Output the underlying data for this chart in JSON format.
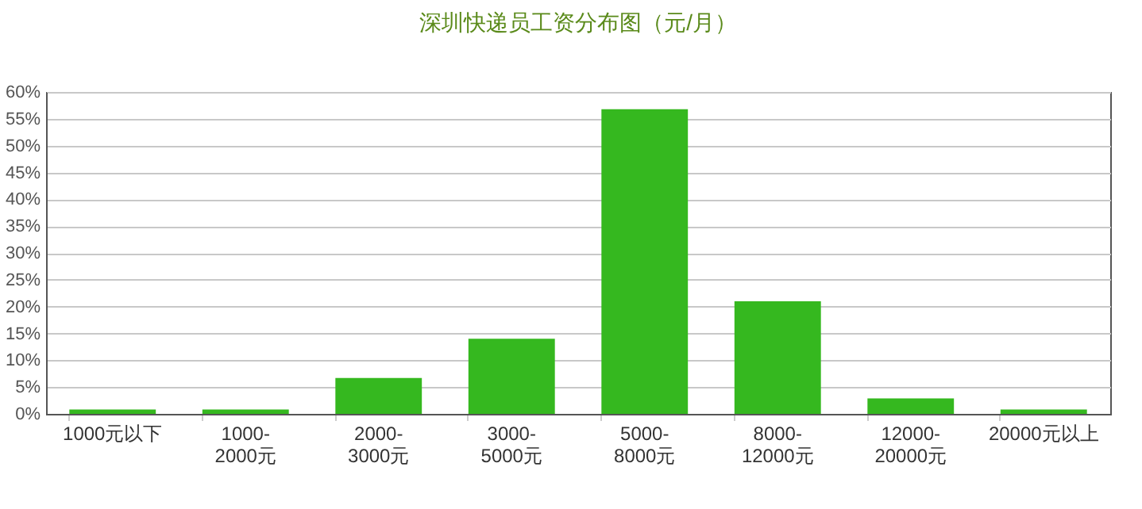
{
  "chart_data": {
    "type": "bar",
    "title": "深圳快递员工资分布图（元/月）",
    "categories": [
      "1000元以下",
      "1000-2000元",
      "2000-3000元",
      "3000-5000元",
      "5000-8000元",
      "8000-12000元",
      "12000-20000元",
      "20000元以上"
    ],
    "values": [
      0.8,
      0.8,
      6.7,
      14,
      56.8,
      21,
      2.9,
      0.8
    ],
    "color": "#35b81f",
    "ylim": [
      0,
      60
    ],
    "yticks": [
      {
        "value": 0,
        "label": "0%"
      },
      {
        "value": 5,
        "label": "5%"
      },
      {
        "value": 10,
        "label": "10%"
      },
      {
        "value": 15,
        "label": "15%"
      },
      {
        "value": 20,
        "label": "20%"
      },
      {
        "value": 25,
        "label": "25%"
      },
      {
        "value": 30,
        "label": "30%"
      },
      {
        "value": 35,
        "label": "35%"
      },
      {
        "value": 40,
        "label": "40%"
      },
      {
        "value": 45,
        "label": "45%"
      },
      {
        "value": 50,
        "label": "50%"
      },
      {
        "value": 55,
        "label": "55%"
      },
      {
        "value": 60,
        "label": "60%"
      }
    ],
    "grid": "y"
  }
}
